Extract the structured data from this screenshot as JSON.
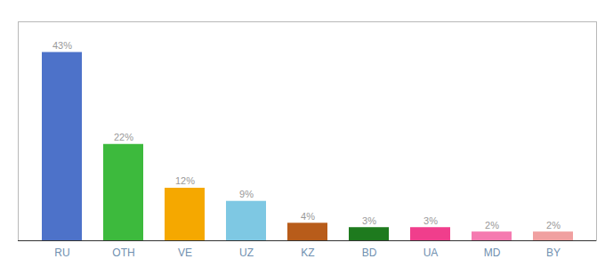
{
  "chart_data": {
    "type": "bar",
    "categories": [
      "RU",
      "OTH",
      "VE",
      "UZ",
      "KZ",
      "BD",
      "UA",
      "MD",
      "BY"
    ],
    "values": [
      43,
      22,
      12,
      9,
      4,
      3,
      3,
      2,
      2
    ],
    "value_labels": [
      "43%",
      "22%",
      "12%",
      "9%",
      "4%",
      "3%",
      "3%",
      "2%",
      "2%"
    ],
    "colors": [
      "#4d72c9",
      "#3dba3d",
      "#f5a800",
      "#7ec8e3",
      "#b85c1a",
      "#1e7a1e",
      "#f03e8c",
      "#f57ab0",
      "#f0a0a0"
    ],
    "ylim": [
      0,
      50
    ],
    "grid": false,
    "data_labels": true,
    "tick_labels": "x"
  }
}
